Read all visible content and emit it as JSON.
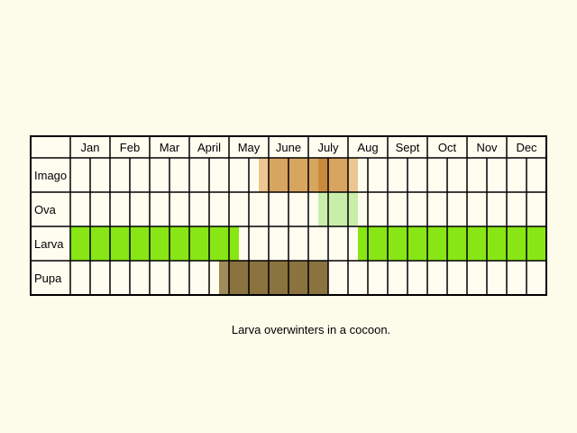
{
  "calendar": {
    "months": [
      "Jan",
      "Feb",
      "Mar",
      "Apr",
      "May",
      "June",
      "July",
      "Aug",
      "Sept",
      "Oct",
      "Nov",
      "Dec"
    ],
    "month_labels": [
      "Jan",
      "Feb",
      "Mar",
      "April",
      "May",
      "June",
      "July",
      "Aug",
      "Sept",
      "Oct",
      "Nov",
      "Dec"
    ],
    "halves_per_month": 2
  },
  "stages": [
    {
      "label": "Imago",
      "color": "#d8a561",
      "dark_color": "#c98a3e",
      "light_color": "#ecc693",
      "periods": [
        {
          "start_half": 9.5,
          "end_half": 14.5
        }
      ]
    },
    {
      "label": "Ova",
      "color": "#c8eeaa",
      "periods": [
        {
          "start_half": 12.5,
          "end_half": 14.5
        }
      ]
    },
    {
      "label": "Larva",
      "color": "#88e614",
      "periods": [
        {
          "start_half": 0,
          "end_half": 8.5
        },
        {
          "start_half": 14.5,
          "end_half": 24
        }
      ]
    },
    {
      "label": "Pupa",
      "color": "#8b7340",
      "light_color": "#a08b5a",
      "periods": [
        {
          "start_half": 7.5,
          "end_half": 13
        }
      ]
    }
  ],
  "note": "Larva overwinters in a cocoon."
}
